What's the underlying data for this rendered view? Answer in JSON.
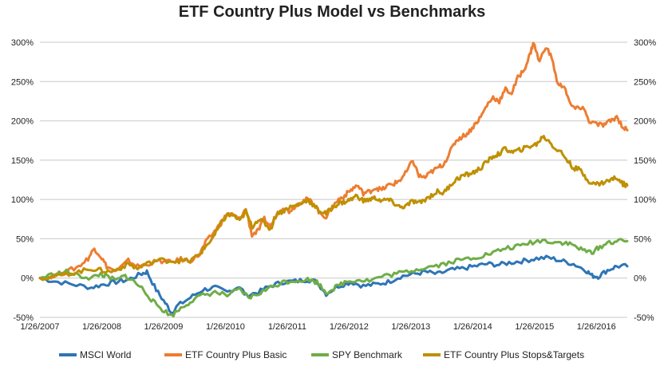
{
  "chart_data": {
    "type": "line",
    "title": "ETF Country Plus Model vs Benchmarks",
    "x_ticks": [
      "1/26/2007",
      "1/26/2008",
      "1/26/2009",
      "1/26/2010",
      "1/26/2011",
      "1/26/2012",
      "1/26/2013",
      "1/26/2014",
      "1/26/2015",
      "1/26/2016"
    ],
    "x_range": [
      2007.07,
      2016.57
    ],
    "y_ticks": [
      "-50%",
      "0%",
      "50%",
      "100%",
      "150%",
      "200%",
      "250%",
      "300%"
    ],
    "y_tick_values": [
      -50,
      0,
      50,
      100,
      150,
      200,
      250,
      300
    ],
    "ylim": [
      -50,
      300
    ],
    "y_unit": "%",
    "grid": "horizontal",
    "dual_y_axis": true,
    "legend_position": "bottom",
    "series": [
      {
        "name": "MSCI World",
        "color": "#2E75B6",
        "points": [
          [
            2007.07,
            0
          ],
          [
            2007.3,
            -4
          ],
          [
            2007.6,
            -8
          ],
          [
            2007.9,
            -12
          ],
          [
            2008.1,
            -8
          ],
          [
            2008.3,
            -5
          ],
          [
            2008.5,
            -2
          ],
          [
            2008.7,
            5
          ],
          [
            2008.8,
            8
          ],
          [
            2008.95,
            -15
          ],
          [
            2009.1,
            -32
          ],
          [
            2009.2,
            -44
          ],
          [
            2009.3,
            -35
          ],
          [
            2009.5,
            -25
          ],
          [
            2009.7,
            -15
          ],
          [
            2009.9,
            -12
          ],
          [
            2010.1,
            -18
          ],
          [
            2010.3,
            -10
          ],
          [
            2010.4,
            -22
          ],
          [
            2010.6,
            -18
          ],
          [
            2010.8,
            -10
          ],
          [
            2011.0,
            -5
          ],
          [
            2011.2,
            -4
          ],
          [
            2011.4,
            -2
          ],
          [
            2011.55,
            -5
          ],
          [
            2011.7,
            -20
          ],
          [
            2011.9,
            -10
          ],
          [
            2012.1,
            -5
          ],
          [
            2012.3,
            -10
          ],
          [
            2012.5,
            -8
          ],
          [
            2012.7,
            -5
          ],
          [
            2012.9,
            2
          ],
          [
            2013.1,
            5
          ],
          [
            2013.3,
            8
          ],
          [
            2013.5,
            5
          ],
          [
            2013.7,
            10
          ],
          [
            2013.9,
            12
          ],
          [
            2014.1,
            15
          ],
          [
            2014.3,
            18
          ],
          [
            2014.5,
            17
          ],
          [
            2014.7,
            20
          ],
          [
            2014.9,
            22
          ],
          [
            2015.1,
            25
          ],
          [
            2015.3,
            26
          ],
          [
            2015.5,
            22
          ],
          [
            2015.7,
            18
          ],
          [
            2015.9,
            10
          ],
          [
            2016.0,
            3
          ],
          [
            2016.1,
            2
          ],
          [
            2016.25,
            10
          ],
          [
            2016.4,
            15
          ],
          [
            2016.57,
            15
          ]
        ]
      },
      {
        "name": "ETF Country Plus Basic",
        "color": "#ED7D31",
        "points": [
          [
            2007.07,
            0
          ],
          [
            2007.3,
            3
          ],
          [
            2007.5,
            8
          ],
          [
            2007.7,
            15
          ],
          [
            2007.85,
            25
          ],
          [
            2007.95,
            38
          ],
          [
            2008.05,
            28
          ],
          [
            2008.15,
            15
          ],
          [
            2008.3,
            8
          ],
          [
            2008.5,
            22
          ],
          [
            2008.65,
            15
          ],
          [
            2008.8,
            18
          ],
          [
            2009.0,
            22
          ],
          [
            2009.2,
            20
          ],
          [
            2009.35,
            24
          ],
          [
            2009.5,
            22
          ],
          [
            2009.65,
            30
          ],
          [
            2009.75,
            45
          ],
          [
            2009.9,
            60
          ],
          [
            2010.0,
            70
          ],
          [
            2010.1,
            82
          ],
          [
            2010.2,
            80
          ],
          [
            2010.3,
            75
          ],
          [
            2010.4,
            88
          ],
          [
            2010.5,
            55
          ],
          [
            2010.6,
            60
          ],
          [
            2010.7,
            75
          ],
          [
            2010.8,
            65
          ],
          [
            2010.9,
            82
          ],
          [
            2011.0,
            90
          ],
          [
            2011.1,
            85
          ],
          [
            2011.2,
            92
          ],
          [
            2011.3,
            98
          ],
          [
            2011.4,
            100
          ],
          [
            2011.5,
            95
          ],
          [
            2011.6,
            82
          ],
          [
            2011.7,
            78
          ],
          [
            2011.8,
            90
          ],
          [
            2011.9,
            100
          ],
          [
            2012.0,
            105
          ],
          [
            2012.1,
            112
          ],
          [
            2012.2,
            118
          ],
          [
            2012.3,
            108
          ],
          [
            2012.4,
            110
          ],
          [
            2012.5,
            115
          ],
          [
            2012.6,
            112
          ],
          [
            2012.7,
            118
          ],
          [
            2012.8,
            120
          ],
          [
            2012.9,
            125
          ],
          [
            2013.0,
            135
          ],
          [
            2013.1,
            150
          ],
          [
            2013.2,
            130
          ],
          [
            2013.3,
            128
          ],
          [
            2013.4,
            135
          ],
          [
            2013.5,
            140
          ],
          [
            2013.6,
            145
          ],
          [
            2013.7,
            160
          ],
          [
            2013.8,
            175
          ],
          [
            2013.9,
            180
          ],
          [
            2014.0,
            185
          ],
          [
            2014.1,
            195
          ],
          [
            2014.2,
            205
          ],
          [
            2014.3,
            220
          ],
          [
            2014.4,
            230
          ],
          [
            2014.5,
            225
          ],
          [
            2014.6,
            240
          ],
          [
            2014.7,
            235
          ],
          [
            2014.8,
            255
          ],
          [
            2014.9,
            265
          ],
          [
            2015.0,
            285
          ],
          [
            2015.05,
            300
          ],
          [
            2015.15,
            275
          ],
          [
            2015.25,
            295
          ],
          [
            2015.35,
            280
          ],
          [
            2015.45,
            245
          ],
          [
            2015.55,
            245
          ],
          [
            2015.65,
            220
          ],
          [
            2015.75,
            215
          ],
          [
            2015.85,
            218
          ],
          [
            2015.95,
            200
          ],
          [
            2016.1,
            195
          ],
          [
            2016.2,
            195
          ],
          [
            2016.3,
            200
          ],
          [
            2016.4,
            205
          ],
          [
            2016.5,
            192
          ],
          [
            2016.57,
            188
          ]
        ]
      },
      {
        "name": "SPY Benchmark",
        "color": "#70AD47",
        "points": [
          [
            2007.07,
            0
          ],
          [
            2007.3,
            5
          ],
          [
            2007.5,
            8
          ],
          [
            2007.7,
            3
          ],
          [
            2007.9,
            0
          ],
          [
            2008.05,
            5
          ],
          [
            2008.15,
            2
          ],
          [
            2008.3,
            -3
          ],
          [
            2008.45,
            3
          ],
          [
            2008.6,
            -5
          ],
          [
            2008.75,
            -15
          ],
          [
            2008.9,
            -30
          ],
          [
            2009.05,
            -40
          ],
          [
            2009.2,
            -48
          ],
          [
            2009.35,
            -38
          ],
          [
            2009.5,
            -30
          ],
          [
            2009.7,
            -22
          ],
          [
            2009.9,
            -18
          ],
          [
            2010.1,
            -22
          ],
          [
            2010.3,
            -15
          ],
          [
            2010.45,
            -25
          ],
          [
            2010.6,
            -20
          ],
          [
            2010.8,
            -12
          ],
          [
            2011.0,
            -5
          ],
          [
            2011.2,
            -3
          ],
          [
            2011.4,
            -2
          ],
          [
            2011.55,
            -5
          ],
          [
            2011.7,
            -18
          ],
          [
            2011.85,
            -12
          ],
          [
            2012.0,
            -5
          ],
          [
            2012.2,
            -2
          ],
          [
            2012.4,
            -3
          ],
          [
            2012.6,
            2
          ],
          [
            2012.8,
            5
          ],
          [
            2013.0,
            8
          ],
          [
            2013.2,
            12
          ],
          [
            2013.4,
            15
          ],
          [
            2013.6,
            18
          ],
          [
            2013.8,
            22
          ],
          [
            2014.0,
            25
          ],
          [
            2014.2,
            28
          ],
          [
            2014.4,
            32
          ],
          [
            2014.6,
            38
          ],
          [
            2014.8,
            40
          ],
          [
            2015.0,
            45
          ],
          [
            2015.2,
            48
          ],
          [
            2015.4,
            46
          ],
          [
            2015.55,
            45
          ],
          [
            2015.7,
            42
          ],
          [
            2015.85,
            35
          ],
          [
            2016.0,
            33
          ],
          [
            2016.1,
            38
          ],
          [
            2016.25,
            45
          ],
          [
            2016.4,
            47
          ],
          [
            2016.57,
            47
          ]
        ]
      },
      {
        "name": "ETF Country Plus Stops&Targets",
        "color": "#BF9000",
        "points": [
          [
            2007.07,
            0
          ],
          [
            2007.3,
            2
          ],
          [
            2007.5,
            5
          ],
          [
            2007.7,
            8
          ],
          [
            2007.9,
            12
          ],
          [
            2008.05,
            10
          ],
          [
            2008.2,
            8
          ],
          [
            2008.35,
            12
          ],
          [
            2008.5,
            18
          ],
          [
            2008.65,
            12
          ],
          [
            2008.8,
            18
          ],
          [
            2009.0,
            23
          ],
          [
            2009.2,
            22
          ],
          [
            2009.35,
            22
          ],
          [
            2009.5,
            22
          ],
          [
            2009.65,
            30
          ],
          [
            2009.75,
            40
          ],
          [
            2009.9,
            55
          ],
          [
            2010.0,
            70
          ],
          [
            2010.1,
            80
          ],
          [
            2010.2,
            80
          ],
          [
            2010.3,
            72
          ],
          [
            2010.4,
            85
          ],
          [
            2010.5,
            65
          ],
          [
            2010.6,
            75
          ],
          [
            2010.7,
            70
          ],
          [
            2010.8,
            62
          ],
          [
            2010.9,
            82
          ],
          [
            2011.0,
            85
          ],
          [
            2011.1,
            90
          ],
          [
            2011.2,
            92
          ],
          [
            2011.3,
            95
          ],
          [
            2011.4,
            100
          ],
          [
            2011.5,
            92
          ],
          [
            2011.6,
            85
          ],
          [
            2011.7,
            82
          ],
          [
            2011.8,
            90
          ],
          [
            2011.9,
            95
          ],
          [
            2012.0,
            97
          ],
          [
            2012.1,
            100
          ],
          [
            2012.2,
            105
          ],
          [
            2012.3,
            98
          ],
          [
            2012.4,
            100
          ],
          [
            2012.5,
            102
          ],
          [
            2012.6,
            98
          ],
          [
            2012.7,
            100
          ],
          [
            2012.8,
            95
          ],
          [
            2012.9,
            90
          ],
          [
            2013.0,
            92
          ],
          [
            2013.1,
            98
          ],
          [
            2013.2,
            95
          ],
          [
            2013.3,
            100
          ],
          [
            2013.4,
            105
          ],
          [
            2013.5,
            110
          ],
          [
            2013.6,
            108
          ],
          [
            2013.7,
            118
          ],
          [
            2013.8,
            125
          ],
          [
            2013.9,
            130
          ],
          [
            2014.0,
            132
          ],
          [
            2014.1,
            135
          ],
          [
            2014.2,
            140
          ],
          [
            2014.3,
            148
          ],
          [
            2014.4,
            155
          ],
          [
            2014.5,
            158
          ],
          [
            2014.6,
            165
          ],
          [
            2014.7,
            160
          ],
          [
            2014.8,
            162
          ],
          [
            2014.9,
            165
          ],
          [
            2015.0,
            168
          ],
          [
            2015.1,
            170
          ],
          [
            2015.2,
            180
          ],
          [
            2015.3,
            175
          ],
          [
            2015.4,
            165
          ],
          [
            2015.5,
            160
          ],
          [
            2015.6,
            150
          ],
          [
            2015.7,
            140
          ],
          [
            2015.8,
            138
          ],
          [
            2015.9,
            128
          ],
          [
            2016.0,
            120
          ],
          [
            2016.1,
            120
          ],
          [
            2016.2,
            122
          ],
          [
            2016.3,
            125
          ],
          [
            2016.4,
            128
          ],
          [
            2016.5,
            120
          ],
          [
            2016.57,
            118
          ]
        ]
      }
    ]
  }
}
